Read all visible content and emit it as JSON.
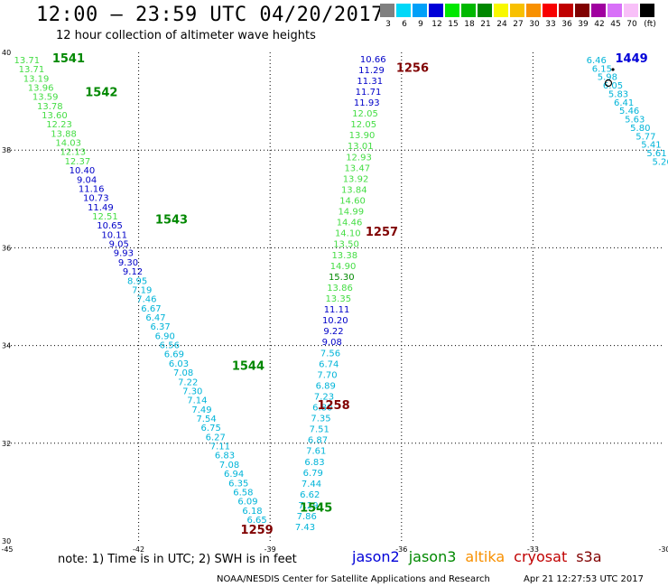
{
  "header": {
    "title": "12:00 – 23:59 UTC 04/20/2017",
    "subtitle": "12 hour collection of altimeter wave heights"
  },
  "color_scale": {
    "unit_label": "(ft)",
    "bins": [
      {
        "label": "3",
        "color": "#808080"
      },
      {
        "label": "6",
        "color": "#00d8f8"
      },
      {
        "label": "9",
        "color": "#00a0f8"
      },
      {
        "label": "12",
        "color": "#0000d8"
      },
      {
        "label": "15",
        "color": "#00e800"
      },
      {
        "label": "18",
        "color": "#00b800"
      },
      {
        "label": "21",
        "color": "#008800"
      },
      {
        "label": "24",
        "color": "#f8f800"
      },
      {
        "label": "27",
        "color": "#f8c000"
      },
      {
        "label": "30",
        "color": "#f89000"
      },
      {
        "label": "33",
        "color": "#f80000"
      },
      {
        "label": "36",
        "color": "#c00000"
      },
      {
        "label": "39",
        "color": "#800000"
      },
      {
        "label": "42",
        "color": "#a000a0"
      },
      {
        "label": "45",
        "color": "#d870f8"
      },
      {
        "label": "70",
        "color": "#f8c0f8"
      },
      {
        "label": "",
        "color": "#000000"
      }
    ]
  },
  "chart_data": {
    "type": "map",
    "lon_ticks": [
      "-45",
      "-42",
      "-39",
      "-36",
      "-33",
      "-30"
    ],
    "lat_ticks": [
      "30",
      "32",
      "34",
      "36",
      "38",
      "40"
    ],
    "xlim": [
      -45,
      -30
    ],
    "ylim": [
      30,
      40
    ],
    "passes": [
      {
        "label": "1541",
        "lon": -43.6,
        "lat": 39.8,
        "color": "#008800"
      },
      {
        "label": "1542",
        "lon": -42.85,
        "lat": 39.1,
        "color": "#008800"
      },
      {
        "label": "1543",
        "lon": -41.25,
        "lat": 36.5,
        "color": "#008800"
      },
      {
        "label": "1544",
        "lon": -39.5,
        "lat": 33.5,
        "color": "#008800"
      },
      {
        "label": "1545",
        "lon": -37.95,
        "lat": 30.6,
        "color": "#008800"
      },
      {
        "label": "1256",
        "lon": -35.75,
        "lat": 39.6,
        "color": "#800000"
      },
      {
        "label": "1257",
        "lon": -36.45,
        "lat": 36.25,
        "color": "#800000"
      },
      {
        "label": "1258",
        "lon": -37.55,
        "lat": 32.7,
        "color": "#800000"
      },
      {
        "label": "1259",
        "lon": -39.3,
        "lat": 30.15,
        "color": "#800000"
      },
      {
        "label": "1449",
        "lon": -30.75,
        "lat": 39.8,
        "color": "#0000d8"
      }
    ],
    "tracks": [
      {
        "name": "track-1541",
        "start": [
          -44.55,
          39.78
        ],
        "end": [
          -39.3,
          30.37
        ],
        "values": [
          "13.71",
          "13.71",
          "13.19",
          "13.96",
          "13.59",
          "13.78",
          "13.60",
          "12.23",
          "13.88",
          "14.03",
          "12.13",
          "12.37",
          "10.40",
          "9.04",
          "11.16",
          "10.73",
          "11.49",
          "12.51",
          "10.65",
          "10.11",
          "9.05",
          "9.93",
          "9.30",
          "9.12",
          "8.95",
          "7.19",
          "7.46",
          "6.67",
          "6.47",
          "6.37",
          "6.90",
          "6.56",
          "6.69",
          "6.03",
          "7.08",
          "7.22",
          "7.30",
          "7.14",
          "7.49",
          "7.54",
          "6.75",
          "6.27",
          "7.11",
          "6.83",
          "7.08",
          "6.94",
          "6.35",
          "6.58",
          "6.09",
          "6.18",
          "6.65"
        ]
      },
      {
        "name": "track-1256",
        "start": [
          -36.65,
          39.8
        ],
        "end": [
          -38.2,
          30.22
        ],
        "values": [
          "10.66",
          "11.29",
          "11.31",
          "11.71",
          "11.93",
          "12.05",
          "12.05",
          "13.90",
          "13.01",
          "12.93",
          "13.47",
          "13.92",
          "13.84",
          "14.60",
          "14.99",
          "14.46",
          "14.10",
          "13.50",
          "13.38",
          "14.90",
          "15.30",
          "13.86",
          "13.35",
          "11.11",
          "10.20",
          "9.22",
          "9.08",
          "7.56",
          "6.74",
          "7.70",
          "6.89",
          "7.23",
          "6.80",
          "7.35",
          "7.51",
          "6.87",
          "7.61",
          "6.83",
          "6.79",
          "7.44",
          "6.62",
          "7.29",
          "7.86",
          "7.43"
        ]
      },
      {
        "name": "track-1449",
        "start": [
          -31.55,
          39.78
        ],
        "end": [
          -30.05,
          37.7
        ],
        "values": [
          "6.46",
          "6.15",
          "5.98",
          "6.05",
          "5.83",
          "6.41",
          "5.46",
          "5.63",
          "5.80",
          "5.77",
          "5.41",
          "5.61",
          "5.26"
        ]
      }
    ]
  },
  "note": "note:  1) Time is in UTC;  2) SWH is in feet",
  "satellites": [
    {
      "name": "jason2",
      "color": "#0000d8"
    },
    {
      "name": "jason3",
      "color": "#008800"
    },
    {
      "name": "altika",
      "color": "#f89000"
    },
    {
      "name": "cryosat",
      "color": "#c00000"
    },
    {
      "name": "s3a",
      "color": "#800000"
    }
  ],
  "footer": {
    "org": "NOAA/NESDIS Center for Satellite Applications and Research",
    "timestamp": "Apr 21 12:27:53 UTC 2017"
  }
}
